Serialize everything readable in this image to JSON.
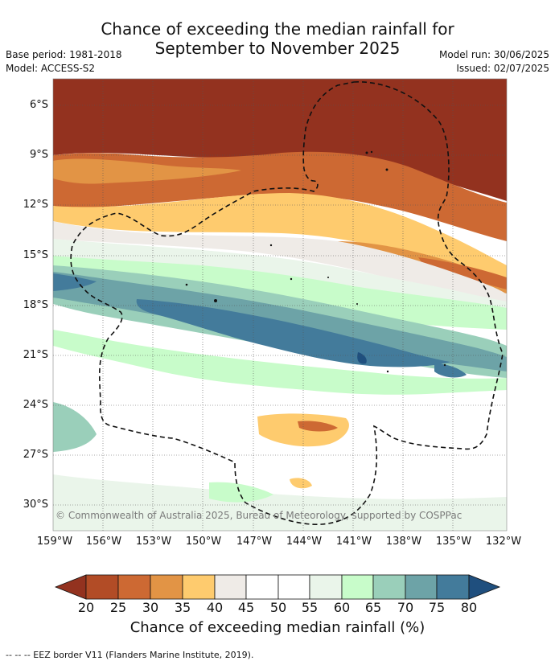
{
  "title_line1": "Chance of exceeding the median rainfall for",
  "title_line2": "September to November 2025",
  "base_period": "Base period: 1981-2018",
  "model": "Model: ACCESS-S2",
  "model_run": "Model run: 30/06/2025",
  "issued": "Issued: 02/07/2025",
  "lat_labels": [
    "6°S",
    "9°S",
    "12°S",
    "15°S",
    "18°S",
    "21°S",
    "24°S",
    "27°S",
    "30°S"
  ],
  "lon_labels": [
    "159°W",
    "156°W",
    "153°W",
    "150°W",
    "147°W",
    "144°W",
    "141°W",
    "138°W",
    "135°W",
    "132°W"
  ],
  "copyright": "© Commonwealth of Australia 2025, Bureau of Meteorology, supported by COSPPac",
  "colorbar": {
    "ticks": [
      "20",
      "25",
      "30",
      "35",
      "40",
      "45",
      "50",
      "55",
      "60",
      "65",
      "70",
      "75",
      "80"
    ],
    "colors": [
      "#93321f",
      "#b24c26",
      "#cd6933",
      "#e29445",
      "#fecb6e",
      "#efebe7",
      "#ffffff",
      "#ffffff",
      "#eaf5ea",
      "#c8fcca",
      "#9acfba",
      "#6da3a7",
      "#437b9b",
      "#1f4f7e"
    ],
    "title": "Chance of exceeding median rainfall (%)"
  },
  "footnote": "--  --  -- EEZ border V11 (Flanders Marine Institute, 2019)."
}
